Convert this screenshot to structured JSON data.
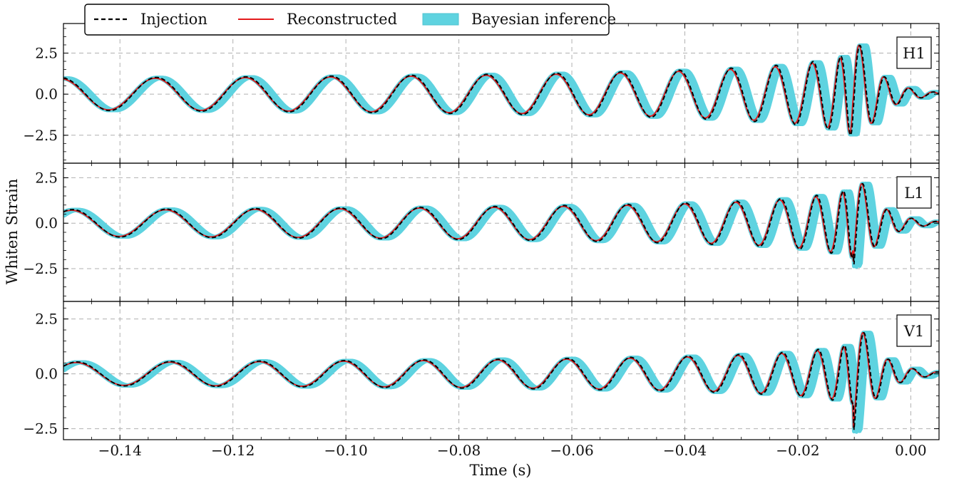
{
  "chart_data": {
    "type": "line",
    "xlabel": "Time (s)",
    "ylabel": "Whiten Strain",
    "xlim": [
      -0.15,
      0.005
    ],
    "xticks": [
      -0.14,
      -0.12,
      -0.1,
      -0.08,
      -0.06,
      -0.04,
      -0.02,
      0.0
    ],
    "xtick_labels": [
      "−0.14",
      "−0.12",
      "−0.10",
      "−0.08",
      "−0.06",
      "−0.04",
      "−0.02",
      "0.00"
    ],
    "grid": true,
    "legend": {
      "placement": "top-left",
      "entries": [
        {
          "label": "Injection",
          "style": "dashed",
          "color": "#000000"
        },
        {
          "label": "Reconstructed",
          "style": "solid",
          "color": "#e41a1c"
        },
        {
          "label": "Bayesian inference",
          "style": "band",
          "color": "#5fd3e0"
        }
      ]
    },
    "colors": {
      "injection": "#000000",
      "reconstructed": "#e41a1c",
      "bayesian": "#5fd3e0"
    },
    "panels": [
      {
        "detector": "H1",
        "ylim": [
          -4.2,
          4.3
        ],
        "yticks": [
          -2.5,
          0.0,
          2.5
        ],
        "ytick_labels": [
          "−2.5",
          "0.0",
          "2.5"
        ],
        "model": {
          "amp0": 0.95,
          "amp_growth": 0.52,
          "phase": 1.0,
          "ringdown_amp": 3.9
        }
      },
      {
        "detector": "L1",
        "ylim": [
          -4.3,
          3.3
        ],
        "yticks": [
          -2.5,
          0.0,
          2.5
        ],
        "ytick_labels": [
          "−2.5",
          "0.0",
          "2.5"
        ],
        "model": {
          "amp0": 0.72,
          "amp_growth": 0.52,
          "phase": 0.3,
          "ringdown_amp": 3.2
        }
      },
      {
        "detector": "V1",
        "ylim": [
          -3.0,
          3.3
        ],
        "yticks": [
          -2.5,
          0.0,
          2.5
        ],
        "ytick_labels": [
          "−2.5",
          "0.0",
          "2.5"
        ],
        "model": {
          "amp0": 0.52,
          "amp_growth": 0.52,
          "phase": 0.0,
          "ringdown_amp": 2.9
        }
      }
    ]
  }
}
